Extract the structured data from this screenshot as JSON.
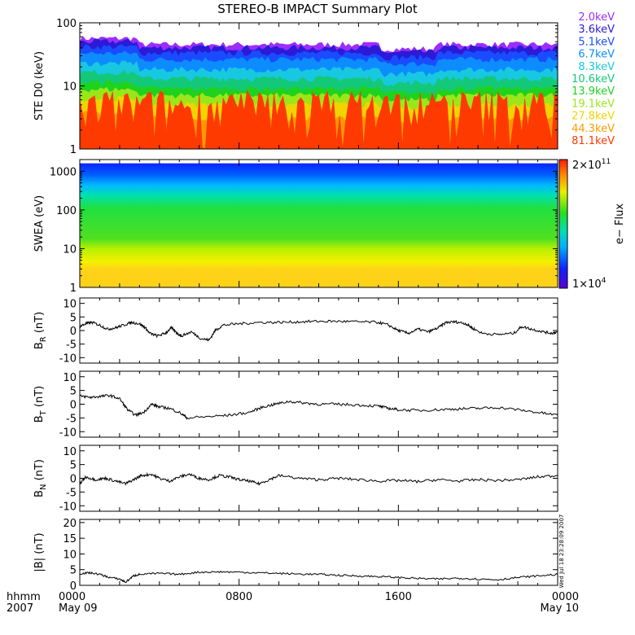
{
  "title": "STEREO-B IMPACT Summary Plot",
  "side_stamp": "Wed Jul 18 23:28:09 2007",
  "time_axis": {
    "row_label_top": "hhmm",
    "row_label_bottom": "2007",
    "ticks": [
      {
        "hhmm": "0000",
        "date": "May 09",
        "hour": 0
      },
      {
        "hhmm": "0800",
        "date": "",
        "hour": 8
      },
      {
        "hhmm": "1600",
        "date": "",
        "hour": 16
      },
      {
        "hhmm": "0000",
        "date": "May 10",
        "hour": 24
      }
    ],
    "range_hours": [
      0,
      24
    ]
  },
  "chart_data": [
    {
      "type": "line",
      "name": "ste",
      "ylabel": "STE D0 (keV)",
      "yscale": "log",
      "ylim": [
        1,
        100
      ],
      "yticks": [
        {
          "v": 1,
          "label": "1"
        },
        {
          "v": 10,
          "label": "10"
        },
        {
          "v": 100,
          "label": "100"
        }
      ],
      "channels": [
        {
          "label": "2.0keV",
          "color": "#9b2dff",
          "level": 45
        },
        {
          "label": "3.6keV",
          "color": "#2b1bd6",
          "level": 40
        },
        {
          "label": "5.1keV",
          "color": "#1a4cff",
          "level": 33
        },
        {
          "label": "6.7keV",
          "color": "#0d8cff",
          "level": 26
        },
        {
          "label": "8.3keV",
          "color": "#18c8e0",
          "level": 18
        },
        {
          "label": "10.6keV",
          "color": "#14c87a",
          "level": 13
        },
        {
          "label": "13.9keV",
          "color": "#1ed21e",
          "level": 9
        },
        {
          "label": "19.1keV",
          "color": "#9be61a",
          "level": 7
        },
        {
          "label": "27.8keV",
          "color": "#f0d400",
          "level": 5
        },
        {
          "label": "44.3keV",
          "color": "#ff9a00",
          "level": 3
        },
        {
          "label": "81.1keV",
          "color": "#ff3a00",
          "level": 1.3
        }
      ]
    },
    {
      "type": "heatmap",
      "name": "swea",
      "ylabel": "SWEA (eV)",
      "yscale": "log",
      "ylim": [
        1,
        2000
      ],
      "yticks": [
        {
          "v": 1,
          "label": "1"
        },
        {
          "v": 10,
          "label": "10"
        },
        {
          "v": 100,
          "label": "100"
        },
        {
          "v": 1000,
          "label": "1000"
        }
      ],
      "colorbar": {
        "label": "e− Flux",
        "max_label": "2×10",
        "max_exp": "11",
        "min_label": "1×10",
        "min_exp": "4"
      }
    },
    {
      "type": "line",
      "name": "br",
      "ylabel": "B",
      "ylabel_sub": "R",
      "ylabel_unit": "(nT)",
      "ylim": [
        -12,
        12
      ],
      "yticks": [
        {
          "v": 10,
          "label": "10"
        },
        {
          "v": 5,
          "label": "5"
        },
        {
          "v": 0,
          "label": "0"
        },
        {
          "v": -5,
          "label": "-5"
        },
        {
          "v": -10,
          "label": "-10"
        }
      ],
      "points": [
        [
          0,
          1.5
        ],
        [
          0.3,
          2.5
        ],
        [
          0.6,
          3
        ],
        [
          1,
          2
        ],
        [
          1.4,
          0.5
        ],
        [
          1.8,
          1
        ],
        [
          2.2,
          2
        ],
        [
          2.6,
          3
        ],
        [
          3,
          2.5
        ],
        [
          3.3,
          1
        ],
        [
          3.5,
          -1
        ],
        [
          3.9,
          -2
        ],
        [
          4.3,
          -1
        ],
        [
          4.6,
          1
        ],
        [
          4.9,
          -1
        ],
        [
          5.1,
          -2
        ],
        [
          5.6,
          -0.5
        ],
        [
          6.1,
          -3
        ],
        [
          6.5,
          -3.5
        ],
        [
          6.8,
          0
        ],
        [
          7.2,
          2
        ],
        [
          8,
          2.5
        ],
        [
          9,
          3
        ],
        [
          10,
          3
        ],
        [
          11,
          3.2
        ],
        [
          12,
          3.4
        ],
        [
          13,
          3.4
        ],
        [
          14,
          3.2
        ],
        [
          15,
          3
        ],
        [
          15.5,
          2
        ],
        [
          16,
          0
        ],
        [
          16.5,
          -1
        ],
        [
          17,
          0.5
        ],
        [
          17.5,
          -0.5
        ],
        [
          18,
          1
        ],
        [
          18.4,
          3
        ],
        [
          18.9,
          3.2
        ],
        [
          19.4,
          2.5
        ],
        [
          19.7,
          1
        ],
        [
          20.2,
          -1
        ],
        [
          21,
          -1.5
        ],
        [
          21.8,
          -1
        ],
        [
          22.2,
          1.5
        ],
        [
          22.7,
          0.5
        ],
        [
          23.3,
          -0.5
        ],
        [
          23.7,
          -1
        ],
        [
          24,
          -0.5
        ]
      ]
    },
    {
      "type": "line",
      "name": "bt",
      "ylabel": "B",
      "ylabel_sub": "T",
      "ylabel_unit": "(nT)",
      "ylim": [
        -12,
        12
      ],
      "yticks": [
        {
          "v": 10,
          "label": "10"
        },
        {
          "v": 5,
          "label": "5"
        },
        {
          "v": 0,
          "label": "0"
        },
        {
          "v": -5,
          "label": "-5"
        },
        {
          "v": -10,
          "label": "-10"
        }
      ],
      "points": [
        [
          0,
          3
        ],
        [
          0.5,
          2.5
        ],
        [
          1,
          2.8
        ],
        [
          1.5,
          3.2
        ],
        [
          2,
          2
        ],
        [
          2.4,
          -2
        ],
        [
          2.8,
          -4
        ],
        [
          3.2,
          -3
        ],
        [
          3.6,
          0
        ],
        [
          4,
          -1
        ],
        [
          4.5,
          -1.5
        ],
        [
          5,
          -3
        ],
        [
          5.4,
          -5
        ],
        [
          6.5,
          -4.5
        ],
        [
          7.5,
          -4
        ],
        [
          8.5,
          -3
        ],
        [
          9.2,
          -1
        ],
        [
          9.8,
          0
        ],
        [
          10.5,
          1
        ],
        [
          11.2,
          0.5
        ],
        [
          12,
          0
        ],
        [
          13,
          0
        ],
        [
          14,
          -0.3
        ],
        [
          15,
          -0.7
        ],
        [
          15.5,
          -1.5
        ],
        [
          16,
          -2
        ],
        [
          17,
          -2.3
        ],
        [
          18,
          -2
        ],
        [
          19,
          -1.7
        ],
        [
          20,
          -1.5
        ],
        [
          21,
          -1.2
        ],
        [
          22,
          -2
        ],
        [
          23,
          -3
        ],
        [
          24,
          -4
        ]
      ]
    },
    {
      "type": "line",
      "name": "bn",
      "ylabel": "B",
      "ylabel_sub": "N",
      "ylabel_unit": "(nT)",
      "ylim": [
        -12,
        12
      ],
      "yticks": [
        {
          "v": 10,
          "label": "10"
        },
        {
          "v": 5,
          "label": "5"
        },
        {
          "v": 0,
          "label": "0"
        },
        {
          "v": -5,
          "label": "-5"
        },
        {
          "v": -10,
          "label": "-10"
        }
      ],
      "points": [
        [
          0,
          -2
        ],
        [
          0.3,
          0.5
        ],
        [
          0.8,
          -0.5
        ],
        [
          1.3,
          0
        ],
        [
          1.8,
          -1
        ],
        [
          2.3,
          -2
        ],
        [
          2.7,
          -0.5
        ],
        [
          3.1,
          1
        ],
        [
          3.6,
          1.5
        ],
        [
          4,
          0
        ],
        [
          4.5,
          -1
        ],
        [
          5,
          0.5
        ],
        [
          5.5,
          1.5
        ],
        [
          6,
          0
        ],
        [
          6.5,
          -0.5
        ],
        [
          7,
          1
        ],
        [
          7.5,
          0.5
        ],
        [
          8,
          -0.5
        ],
        [
          8.5,
          -1
        ],
        [
          9,
          -2
        ],
        [
          9.5,
          -0.5
        ],
        [
          10,
          1
        ],
        [
          11,
          0
        ],
        [
          12,
          -0.5
        ],
        [
          13,
          0
        ],
        [
          14,
          -0.5
        ],
        [
          15,
          -1
        ],
        [
          16,
          -0.8
        ],
        [
          17,
          -1.2
        ],
        [
          18,
          -0.5
        ],
        [
          19,
          -1
        ],
        [
          20,
          -0.5
        ],
        [
          21,
          -0.8
        ],
        [
          22,
          -0.5
        ],
        [
          23,
          0.5
        ],
        [
          24,
          1
        ]
      ]
    },
    {
      "type": "line",
      "name": "bmag",
      "ylabel": "|B| (nT)",
      "ylim": [
        0,
        21
      ],
      "yticks": [
        {
          "v": 20,
          "label": "20"
        },
        {
          "v": 15,
          "label": "15"
        },
        {
          "v": 10,
          "label": "10"
        },
        {
          "v": 5,
          "label": "5"
        },
        {
          "v": 0,
          "label": "0"
        }
      ],
      "points": [
        [
          0,
          3.7
        ],
        [
          0.5,
          4
        ],
        [
          1,
          3.5
        ],
        [
          1.5,
          2.5
        ],
        [
          2,
          2
        ],
        [
          2.3,
          1
        ],
        [
          2.7,
          3
        ],
        [
          3,
          3.5
        ],
        [
          4,
          3.8
        ],
        [
          5,
          3.5
        ],
        [
          6,
          4.2
        ],
        [
          7,
          4.3
        ],
        [
          8,
          4.2
        ],
        [
          9,
          4
        ],
        [
          10,
          3.8
        ],
        [
          11,
          3.6
        ],
        [
          12,
          3.5
        ],
        [
          13,
          3.2
        ],
        [
          14,
          3
        ],
        [
          15,
          2.8
        ],
        [
          16,
          2.5
        ],
        [
          17,
          2.2
        ],
        [
          18,
          2
        ],
        [
          19,
          2.3
        ],
        [
          20,
          2
        ],
        [
          21,
          1.8
        ],
        [
          22,
          2.5
        ],
        [
          23,
          3
        ],
        [
          24,
          3.5
        ]
      ]
    }
  ]
}
